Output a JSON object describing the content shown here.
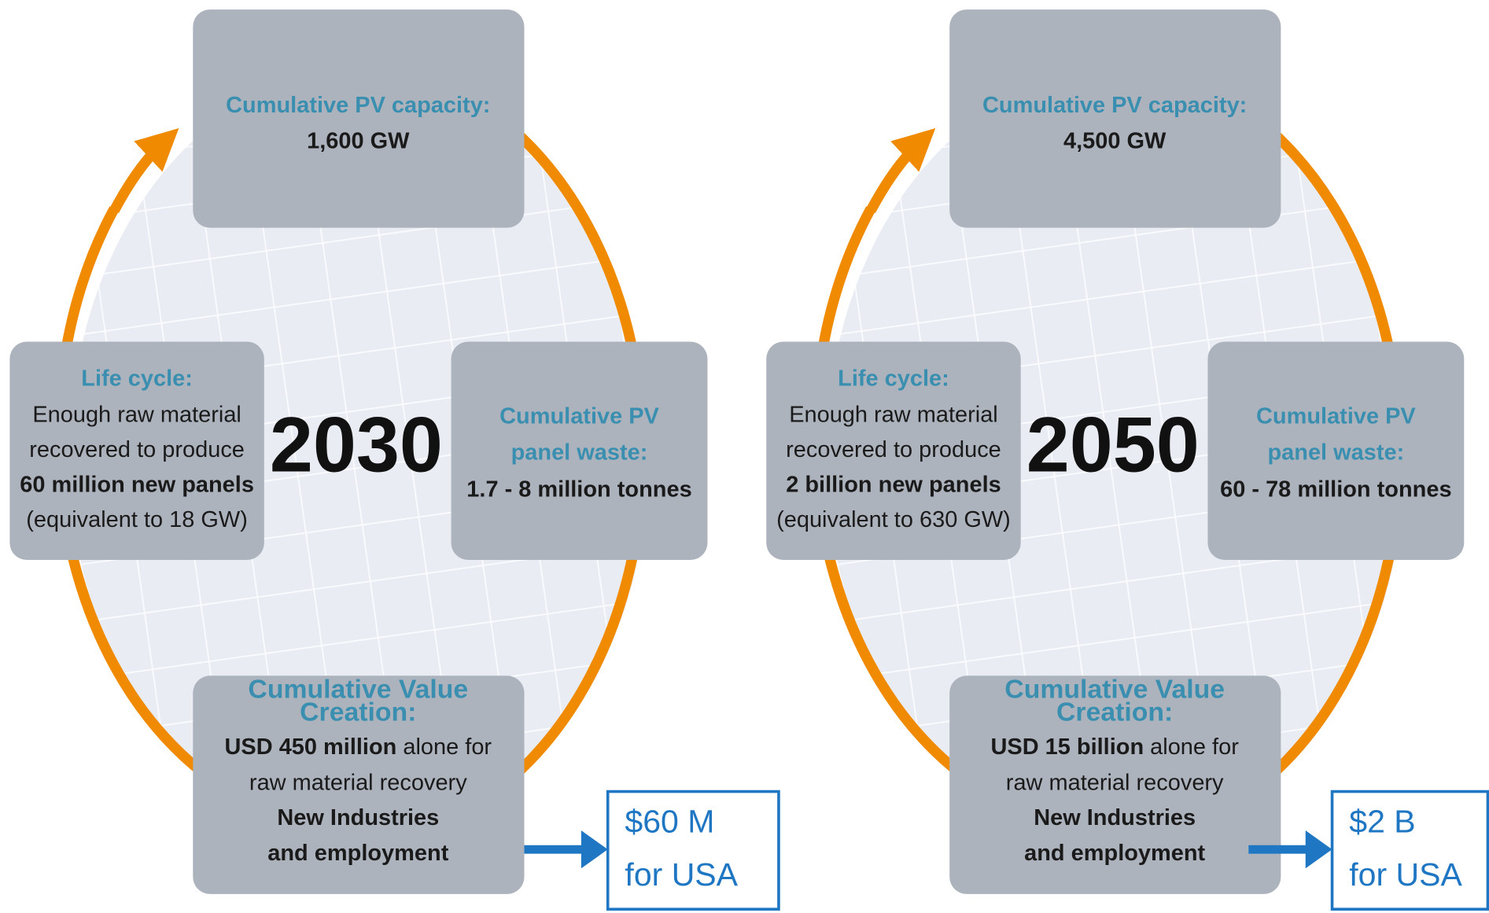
{
  "panels": [
    {
      "year": "2030",
      "capacity": {
        "label": "Cumulative PV capacity:",
        "value": "1,600 GW"
      },
      "life_cycle": {
        "label": "Life cycle:",
        "lines": [
          "Enough raw material",
          "recovered to produce",
          "60 million new panels",
          "(equivalent to 18 GW)"
        ]
      },
      "waste": {
        "label_lines": [
          "Cumulative PV",
          "panel waste:"
        ],
        "value": "1.7 - 8 million tonnes"
      },
      "value_creation": {
        "label_lines": [
          "Cumulative Value",
          "Creation:"
        ],
        "amount": "USD 450 million",
        "amount_suffix": "alone for",
        "line": "raw material recovery",
        "bold_lines": [
          "New Industries",
          "and employment"
        ]
      },
      "usa": [
        "$60 M",
        "for USA"
      ]
    },
    {
      "year": "2050",
      "capacity": {
        "label": "Cumulative PV capacity:",
        "value": "4,500 GW"
      },
      "life_cycle": {
        "label": "Life cycle:",
        "lines": [
          "Enough raw material",
          "recovered to produce",
          "2 billion new panels",
          "(equivalent to 630 GW)"
        ]
      },
      "waste": {
        "label_lines": [
          "Cumulative PV",
          "panel waste:"
        ],
        "value": "60 - 78 million tonnes"
      },
      "value_creation": {
        "label_lines": [
          "Cumulative Value",
          "Creation:"
        ],
        "amount": "USD 15 billion",
        "amount_suffix": "alone for",
        "line": "raw material recovery",
        "bold_lines": [
          "New Industries",
          "and employment"
        ]
      },
      "usa": [
        "$2 B",
        "for USA"
      ]
    }
  ]
}
